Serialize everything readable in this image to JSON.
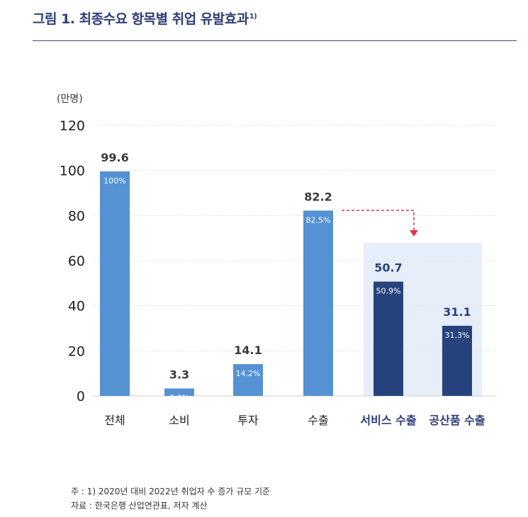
{
  "title": {
    "text": "그림 1. 최종수요 항목별 취업 유발효과",
    "superscript": "1)"
  },
  "colors": {
    "title": "#2e3d78",
    "bar_total": "#5592d3",
    "bar_services": "#27437e",
    "highlight_bg": "#e6eefa",
    "arrow": "#e0344f",
    "grid": "#e1e1e1"
  },
  "chart_data": {
    "type": "bar",
    "unit_label": "(만명)",
    "categories": [
      "전체",
      "소비",
      "투자",
      "수출",
      "서비스 수출",
      "공산품 수출"
    ],
    "values": [
      99.6,
      3.3,
      14.1,
      82.2,
      50.7,
      31.1
    ],
    "share_labels": [
      "100%",
      "3.3%",
      "14.2%",
      "82.5%",
      "50.9%",
      "31.3%"
    ],
    "bar_colors": [
      "#5592d3",
      "#5592d3",
      "#5592d3",
      "#5592d3",
      "#27437e",
      "#27437e"
    ],
    "highlight_categories": [
      "서비스 수출",
      "공산품 수출"
    ],
    "arrow": {
      "from": "수출",
      "to": "서비스 수출",
      "style": "dashed",
      "color": "#e0344f"
    },
    "ylim": [
      0,
      120
    ],
    "yticks": [
      0,
      20,
      40,
      60,
      80,
      100,
      120
    ],
    "grid": true,
    "legend": "none"
  },
  "footnotes": {
    "note": "주 : 1) 2020년 대비 2022년 취업자 수 증가 규모 기준",
    "source": "자료 : 한국은행 산업연관표, 저자 계산"
  }
}
